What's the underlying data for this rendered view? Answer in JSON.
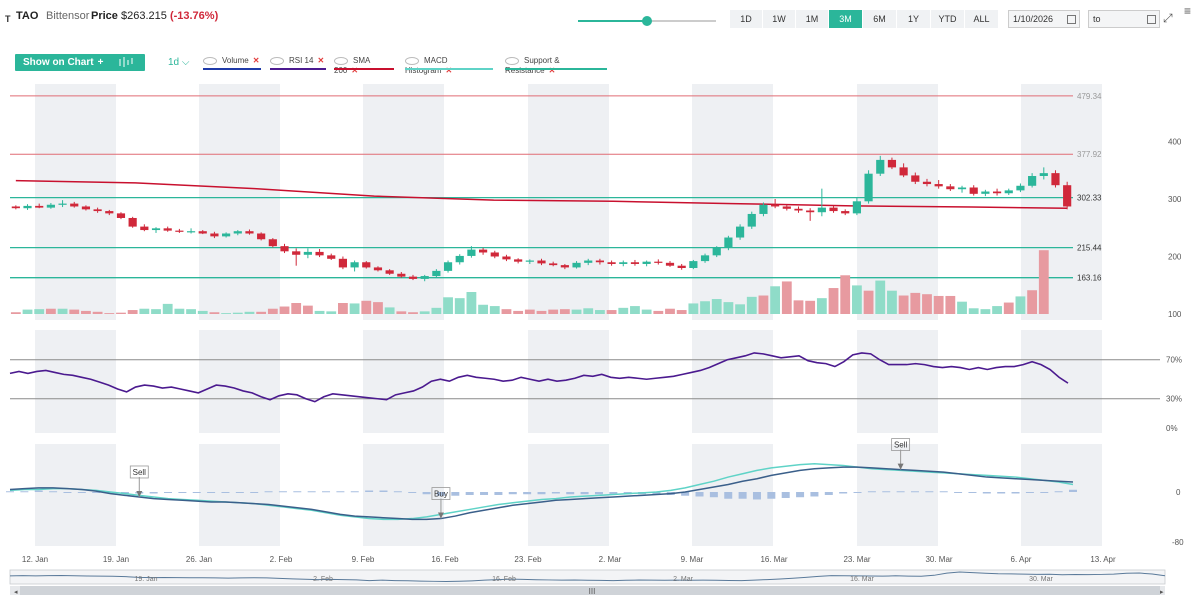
{
  "header": {
    "logo": "T",
    "symbol": "TAO",
    "name": "Bittensor",
    "price_label": "Price",
    "price": "$263.215",
    "change": "(-13.76%)"
  },
  "zoom_slider": {
    "value": 0.5
  },
  "ranges": [
    {
      "label": "1D",
      "active": false
    },
    {
      "label": "1W",
      "active": false
    },
    {
      "label": "1M",
      "active": false
    },
    {
      "label": "3M",
      "active": true
    },
    {
      "label": "6M",
      "active": false
    },
    {
      "label": "1Y",
      "active": false
    },
    {
      "label": "YTD",
      "active": false
    },
    {
      "label": "ALL",
      "active": false
    }
  ],
  "date_from": "1/10/2026",
  "date_to": "to",
  "toolbar": {
    "show_on_chart": "Show on Chart",
    "plus": "+",
    "interval": "1d",
    "chevron": "⌵",
    "indicators": [
      {
        "label": "Volume",
        "color": "#1f3aa8"
      },
      {
        "label": "RSI 14",
        "color": "#4b1a8f"
      },
      {
        "label": "SMA 200",
        "color": "#c8102e"
      },
      {
        "label": "MACD Histogram",
        "color": "#5fd3c7"
      },
      {
        "label": "Support & Resistance",
        "color": "#2bb69a"
      }
    ],
    "remove": "✕"
  },
  "colors": {
    "up": "#2bb69a",
    "down": "#d0283a",
    "up_volume": "#8fdcc8",
    "down_volume": "#e79aa0",
    "sma": "#c8102e",
    "rsi": "#4b1a8f",
    "macd": "#3a5f8a",
    "signal": "#5fd3c7",
    "resistance": "#e06c75",
    "support": "#2bb69a"
  },
  "chart_data": {
    "type": "candlestick",
    "interval": "1d",
    "price_axis": {
      "ticks": [
        100,
        200,
        300,
        400
      ],
      "range": [
        100,
        500
      ]
    },
    "levels": [
      {
        "value": 479.34,
        "label": "479.34",
        "kind": "resistance"
      },
      {
        "value": 377.92,
        "label": "377.92",
        "kind": "resistance"
      },
      {
        "value": 302.33,
        "label": "302.33",
        "kind": "support"
      },
      {
        "value": 215.44,
        "label": "215.44",
        "kind": "support"
      },
      {
        "value": 163.16,
        "label": "163.16",
        "kind": "support"
      }
    ],
    "x_ticks": [
      "12. Jan",
      "19. Jan",
      "26. Jan",
      "2. Feb",
      "9. Feb",
      "16. Feb",
      "23. Feb",
      "2. Mar",
      "9. Mar",
      "16. Mar",
      "23. Mar",
      "30. Mar",
      "6. Apr",
      "13. Apr"
    ],
    "candles": [
      [
        287,
        289,
        282,
        284
      ],
      [
        284,
        291,
        281,
        288
      ],
      [
        288,
        292,
        284,
        285
      ],
      [
        285,
        293,
        283,
        290
      ],
      [
        290,
        298,
        286,
        292
      ],
      [
        292,
        295,
        285,
        287
      ],
      [
        287,
        289,
        280,
        282
      ],
      [
        282,
        285,
        276,
        279
      ],
      [
        279,
        281,
        272,
        275
      ],
      [
        275,
        277,
        265,
        267
      ],
      [
        267,
        269,
        250,
        252
      ],
      [
        252,
        256,
        244,
        246
      ],
      [
        246,
        251,
        241,
        249
      ],
      [
        249,
        252,
        243,
        245
      ],
      [
        245,
        248,
        241,
        243
      ],
      [
        243,
        249,
        240,
        244
      ],
      [
        244,
        246,
        239,
        240
      ],
      [
        240,
        243,
        232,
        235
      ],
      [
        235,
        242,
        233,
        240
      ],
      [
        240,
        246,
        237,
        244
      ],
      [
        244,
        247,
        238,
        240
      ],
      [
        240,
        242,
        228,
        230
      ],
      [
        230,
        232,
        216,
        218
      ],
      [
        218,
        222,
        206,
        209
      ],
      [
        209,
        214,
        184,
        203
      ],
      [
        203,
        214,
        197,
        208
      ],
      [
        208,
        213,
        199,
        202
      ],
      [
        202,
        205,
        194,
        196
      ],
      [
        196,
        200,
        178,
        181
      ],
      [
        181,
        193,
        174,
        190
      ],
      [
        190,
        192,
        179,
        181
      ],
      [
        181,
        183,
        174,
        176
      ],
      [
        176,
        178,
        168,
        170
      ],
      [
        170,
        173,
        163,
        165
      ],
      [
        165,
        168,
        159,
        161
      ],
      [
        161,
        168,
        157,
        166
      ],
      [
        166,
        178,
        163,
        175
      ],
      [
        175,
        193,
        172,
        190
      ],
      [
        190,
        204,
        186,
        201
      ],
      [
        201,
        218,
        198,
        212
      ],
      [
        212,
        215,
        203,
        207
      ],
      [
        207,
        210,
        197,
        200
      ],
      [
        200,
        203,
        192,
        195
      ],
      [
        195,
        197,
        188,
        191
      ],
      [
        191,
        195,
        187,
        193
      ],
      [
        193,
        196,
        185,
        188
      ],
      [
        188,
        191,
        183,
        185
      ],
      [
        185,
        187,
        178,
        181
      ],
      [
        181,
        192,
        179,
        189
      ],
      [
        189,
        196,
        185,
        193
      ],
      [
        193,
        196,
        186,
        190
      ],
      [
        190,
        193,
        184,
        187
      ],
      [
        187,
        193,
        183,
        190
      ],
      [
        190,
        194,
        184,
        187
      ],
      [
        187,
        193,
        183,
        191
      ],
      [
        191,
        195,
        186,
        189
      ],
      [
        189,
        192,
        182,
        184
      ],
      [
        184,
        187,
        177,
        180
      ],
      [
        180,
        194,
        178,
        192
      ],
      [
        192,
        205,
        189,
        202
      ],
      [
        202,
        218,
        199,
        215
      ],
      [
        215,
        236,
        211,
        233
      ],
      [
        233,
        256,
        229,
        252
      ],
      [
        252,
        278,
        248,
        274
      ],
      [
        274,
        294,
        270,
        290
      ],
      [
        290,
        300,
        284,
        287
      ],
      [
        287,
        290,
        280,
        283
      ],
      [
        283,
        287,
        276,
        280
      ],
      [
        280,
        284,
        262,
        277
      ],
      [
        277,
        318,
        270,
        285
      ],
      [
        285,
        288,
        276,
        279
      ],
      [
        279,
        282,
        272,
        275
      ],
      [
        275,
        302,
        272,
        296
      ],
      [
        296,
        350,
        292,
        344
      ],
      [
        344,
        375,
        340,
        368
      ],
      [
        368,
        372,
        352,
        355
      ],
      [
        355,
        362,
        338,
        341
      ],
      [
        341,
        346,
        326,
        330
      ],
      [
        330,
        335,
        322,
        326
      ],
      [
        326,
        333,
        318,
        322
      ],
      [
        322,
        326,
        314,
        317
      ],
      [
        317,
        323,
        311,
        320
      ],
      [
        320,
        324,
        306,
        309
      ],
      [
        309,
        316,
        305,
        313
      ],
      [
        313,
        318,
        306,
        310
      ],
      [
        310,
        318,
        307,
        315
      ],
      [
        315,
        327,
        312,
        323
      ],
      [
        323,
        345,
        320,
        340
      ],
      [
        340,
        355,
        334,
        345
      ],
      [
        345,
        350,
        320,
        324
      ],
      [
        324,
        330,
        282,
        287
      ]
    ],
    "volume": [
      [
        4,
        0
      ],
      [
        10,
        1
      ],
      [
        11,
        1
      ],
      [
        12,
        0
      ],
      [
        12,
        1
      ],
      [
        10,
        0
      ],
      [
        7,
        0
      ],
      [
        5,
        0
      ],
      [
        2,
        0
      ],
      [
        3,
        0
      ],
      [
        9,
        0
      ],
      [
        12,
        1
      ],
      [
        11,
        1
      ],
      [
        23,
        1
      ],
      [
        12,
        1
      ],
      [
        11,
        1
      ],
      [
        7,
        1
      ],
      [
        4,
        0
      ],
      [
        2,
        1
      ],
      [
        3,
        1
      ],
      [
        5,
        1
      ],
      [
        5,
        0
      ],
      [
        12,
        0
      ],
      [
        17,
        0
      ],
      [
        25,
        0
      ],
      [
        19,
        0
      ],
      [
        7,
        1
      ],
      [
        6,
        1
      ],
      [
        25,
        0
      ],
      [
        24,
        1
      ],
      [
        30,
        0
      ],
      [
        27,
        0
      ],
      [
        15,
        1
      ],
      [
        6,
        0
      ],
      [
        4,
        0
      ],
      [
        6,
        1
      ],
      [
        14,
        1
      ],
      [
        38,
        1
      ],
      [
        36,
        1
      ],
      [
        50,
        1
      ],
      [
        21,
        1
      ],
      [
        18,
        1
      ],
      [
        11,
        0
      ],
      [
        7,
        0
      ],
      [
        10,
        0
      ],
      [
        7,
        0
      ],
      [
        10,
        0
      ],
      [
        11,
        0
      ],
      [
        10,
        1
      ],
      [
        13,
        1
      ],
      [
        9,
        1
      ],
      [
        9,
        0
      ],
      [
        14,
        1
      ],
      [
        18,
        1
      ],
      [
        10,
        1
      ],
      [
        7,
        0
      ],
      [
        12,
        0
      ],
      [
        9,
        0
      ],
      [
        24,
        1
      ],
      [
        29,
        1
      ],
      [
        34,
        1
      ],
      [
        27,
        1
      ],
      [
        22,
        1
      ],
      [
        39,
        1
      ],
      [
        42,
        0
      ],
      [
        63,
        1
      ],
      [
        74,
        0
      ],
      [
        31,
        0
      ],
      [
        30,
        0
      ],
      [
        36,
        1
      ],
      [
        59,
        0
      ],
      [
        88,
        0
      ],
      [
        65,
        1
      ],
      [
        53,
        0
      ],
      [
        76,
        1
      ],
      [
        53,
        1
      ],
      [
        42,
        0
      ],
      [
        48,
        0
      ],
      [
        45,
        0
      ],
      [
        41,
        0
      ],
      [
        41,
        0
      ],
      [
        28,
        1
      ],
      [
        13,
        1
      ],
      [
        11,
        1
      ],
      [
        18,
        1
      ],
      [
        26,
        0
      ],
      [
        40,
        1
      ],
      [
        54,
        0
      ],
      [
        145,
        0
      ]
    ],
    "sma200": [
      [
        0,
        332
      ],
      [
        10,
        328
      ],
      [
        20,
        318
      ],
      [
        30,
        305
      ],
      [
        40,
        298
      ],
      [
        50,
        296
      ],
      [
        60,
        292
      ],
      [
        70,
        288
      ],
      [
        80,
        286
      ],
      [
        88,
        284
      ]
    ],
    "rsi": {
      "levels": [
        {
          "value": 70,
          "label": "70%"
        },
        {
          "value": 30,
          "label": "30%"
        },
        {
          "value": 0,
          "label": "0%"
        }
      ],
      "values": [
        56,
        58,
        56,
        58,
        59,
        57,
        55,
        54,
        52,
        50,
        47,
        44,
        40,
        37,
        42,
        44,
        43,
        41,
        42,
        40,
        38,
        36,
        40,
        44,
        43,
        41,
        38,
        36,
        32,
        29,
        33,
        35,
        34,
        30,
        27,
        32,
        35,
        34,
        33,
        32,
        31,
        30,
        29,
        34,
        36,
        38,
        42,
        48,
        50,
        48,
        52,
        54,
        52,
        51,
        50,
        48,
        49,
        52,
        50,
        48,
        50,
        48,
        49,
        51,
        54,
        53,
        55,
        52,
        51,
        52,
        51,
        50,
        51,
        52,
        53,
        55,
        57,
        59,
        62,
        66,
        70,
        72,
        74,
        77,
        76,
        74,
        72,
        73,
        74,
        69,
        67,
        66,
        63,
        68,
        75,
        77,
        76,
        70,
        65,
        65,
        65,
        66,
        65,
        63,
        62,
        63,
        62,
        60,
        62,
        60,
        62,
        63,
        63,
        65,
        68,
        65,
        60,
        52,
        46
      ]
    },
    "macd": {
      "ticks": [
        0,
        -80
      ],
      "signals": [
        {
          "label": "Sell",
          "index": 11,
          "position": "above"
        },
        {
          "label": "Buy",
          "index": 37,
          "position": "above"
        },
        {
          "label": "Sell",
          "index": 75,
          "position": "above"
        }
      ],
      "macd": [
        3,
        4,
        5,
        5,
        4,
        3,
        1,
        -2,
        -4,
        -6,
        -8,
        -9,
        -10,
        -11,
        -12,
        -12,
        -13,
        -14,
        -15,
        -17,
        -19,
        -21,
        -24,
        -27,
        -29,
        -30,
        -31,
        -32,
        -33,
        -33,
        -32,
        -29,
        -25,
        -22,
        -19,
        -16,
        -14,
        -12,
        -10,
        -9,
        -8,
        -7,
        -6,
        -5,
        -4,
        -3,
        -2,
        0,
        3,
        6,
        9,
        13,
        16,
        20,
        23,
        26,
        28,
        29,
        30,
        30,
        29,
        28,
        27,
        26,
        25,
        24,
        22,
        20,
        18,
        17,
        16,
        15,
        14,
        13,
        12
      ],
      "signal": [
        2,
        3,
        3,
        4,
        4,
        3,
        2,
        0,
        -2,
        -4,
        -6,
        -8,
        -9,
        -10,
        -11,
        -12,
        -13,
        -14,
        -16,
        -18,
        -20,
        -22,
        -25,
        -28,
        -30,
        -32,
        -33,
        -33,
        -32,
        -30,
        -27,
        -24,
        -21,
        -18,
        -15,
        -13,
        -11,
        -9,
        -8,
        -6,
        -5,
        -4,
        -3,
        -2,
        -1,
        0,
        2,
        5,
        9,
        13,
        18,
        22,
        26,
        29,
        31,
        33,
        34,
        33,
        32,
        30,
        28,
        27,
        26,
        25,
        24,
        23,
        22,
        21,
        20,
        19,
        18,
        16,
        14,
        12,
        9
      ],
      "hist": [
        1,
        1,
        2,
        1,
        0,
        0,
        -1,
        -2,
        -2,
        -2,
        -2,
        -1,
        -1,
        -1,
        -1,
        0,
        0,
        0,
        1,
        1,
        1,
        1,
        1,
        1,
        1,
        2,
        2,
        1,
        -1,
        -3,
        -5,
        -5,
        -4,
        -4,
        -4,
        -3,
        -3,
        -3,
        -2,
        -3,
        -3,
        -3,
        -3,
        -3,
        -3,
        -3,
        -4,
        -5,
        -6,
        -7,
        -9,
        -9,
        -10,
        -9,
        -8,
        -7,
        -6,
        -4,
        -2,
        0,
        1,
        1,
        1,
        1,
        1,
        1,
        0,
        -1,
        -2,
        -2,
        -2,
        -1,
        0,
        1,
        3
      ]
    }
  }
}
